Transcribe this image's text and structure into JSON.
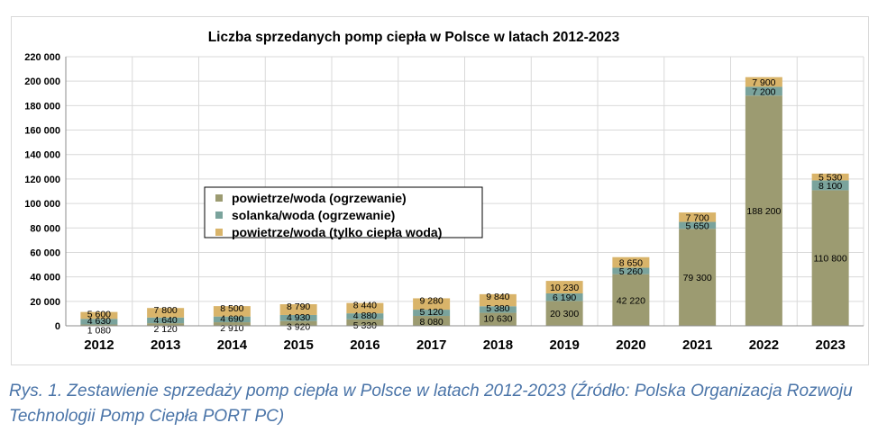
{
  "chart_data": {
    "type": "bar",
    "stacked": true,
    "title": "Liczba sprzedanych pomp ciepła w Polsce w latach 2012-2023",
    "xlabel": "",
    "ylabel": "",
    "ylim": [
      0,
      220000
    ],
    "yticks": [
      0,
      20000,
      40000,
      60000,
      80000,
      100000,
      120000,
      140000,
      160000,
      180000,
      200000,
      220000
    ],
    "ytick_labels": [
      "0",
      "20 000",
      "40 000",
      "60 000",
      "80 000",
      "100 000",
      "120 000",
      "140 000",
      "160 000",
      "180 000",
      "200 000",
      "220 000"
    ],
    "grid": true,
    "legend_position": "center-left",
    "categories": [
      "2012",
      "2013",
      "2014",
      "2015",
      "2016",
      "2017",
      "2018",
      "2019",
      "2020",
      "2021",
      "2022",
      "2023"
    ],
    "series": [
      {
        "name": "powietrze/woda (ogrzewanie)",
        "color": "#9c9b71",
        "values": [
          1080,
          2120,
          2910,
          3920,
          5330,
          8080,
          10630,
          20300,
          42220,
          79300,
          188200,
          110800
        ],
        "labels": [
          "1 080",
          "2 120",
          "2 910",
          "3 920",
          "5 330",
          "8 080",
          "10 630",
          "20 300",
          "42 220",
          "79 300",
          "188 200",
          "110 800"
        ]
      },
      {
        "name": "solanka/woda (ogrzewanie)",
        "color": "#7aa39c",
        "values": [
          4630,
          4640,
          4690,
          4930,
          4880,
          5120,
          5380,
          6190,
          5260,
          5650,
          7200,
          8100
        ],
        "labels": [
          "4 630",
          "4 640",
          "4 690",
          "4 930",
          "4 880",
          "5 120",
          "5 380",
          "6 190",
          "5 260",
          "5 650",
          "7 200",
          "8 100"
        ]
      },
      {
        "name": "powietrze/woda (tylko ciepła woda)",
        "color": "#d9b46a",
        "values": [
          5600,
          7800,
          8500,
          8790,
          8440,
          9280,
          9840,
          10230,
          8650,
          7700,
          7900,
          5530
        ],
        "labels": [
          "5 600",
          "7 800",
          "8 500",
          "8 790",
          "8 440",
          "9 280",
          "9 840",
          "10 230",
          "8 650",
          "7 700",
          "7 900",
          "5 530"
        ]
      }
    ]
  },
  "caption": "Rys. 1. Zestawienie sprzedaży pomp ciepła w Polsce w latach 2012-2023 (Źródło: Polska Organizacja Rozwoju Technologii Pomp Ciepła PORT PC)"
}
